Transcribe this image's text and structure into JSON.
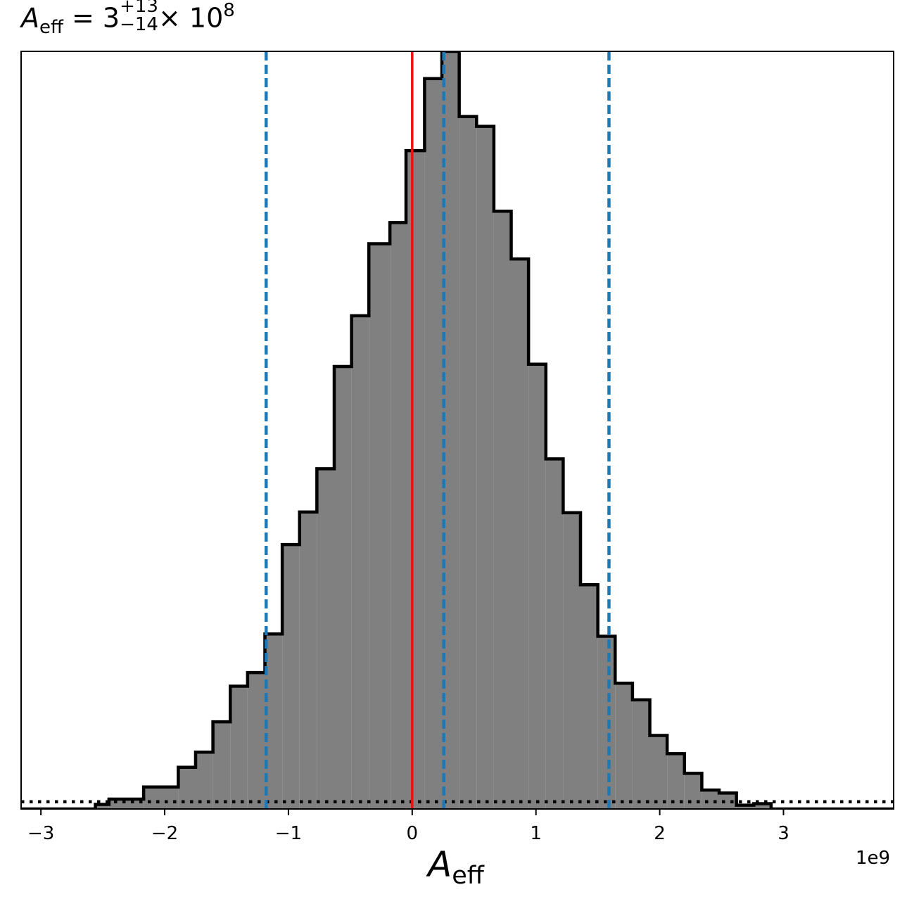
{
  "title": {
    "symbol": "A",
    "subscript": "eff",
    "equals": " = 3",
    "upper": "+13",
    "lower": "−14",
    "times": "× 10",
    "exponent": "8"
  },
  "xlabel": {
    "symbol": "A",
    "subscript": "eff"
  },
  "offset_text": "1e9",
  "chart_data": {
    "type": "histogram",
    "x_unit_scale": "1e9",
    "xlim": [
      -3.16,
      3.89
    ],
    "ylim": [
      0,
      1.0
    ],
    "grid": false,
    "bins": [
      {
        "x0": -3.16,
        "x1": -2.56,
        "y": 0.0
      },
      {
        "x0": -2.56,
        "x1": -2.45,
        "y": 0.006
      },
      {
        "x0": -2.45,
        "x1": -2.17,
        "y": 0.013
      },
      {
        "x0": -2.17,
        "x1": -1.89,
        "y": 0.029
      },
      {
        "x0": -1.89,
        "x1": -1.75,
        "y": 0.055
      },
      {
        "x0": -1.75,
        "x1": -1.61,
        "y": 0.075
      },
      {
        "x0": -1.61,
        "x1": -1.47,
        "y": 0.115
      },
      {
        "x0": -1.47,
        "x1": -1.33,
        "y": 0.162
      },
      {
        "x0": -1.33,
        "x1": -1.19,
        "y": 0.18
      },
      {
        "x0": -1.19,
        "x1": -1.05,
        "y": 0.231
      },
      {
        "x0": -1.05,
        "x1": -0.91,
        "y": 0.349
      },
      {
        "x0": -0.91,
        "x1": -0.77,
        "y": 0.392
      },
      {
        "x0": -0.77,
        "x1": -0.63,
        "y": 0.449
      },
      {
        "x0": -0.63,
        "x1": -0.49,
        "y": 0.584
      },
      {
        "x0": -0.49,
        "x1": -0.35,
        "y": 0.651
      },
      {
        "x0": -0.35,
        "x1": -0.18,
        "y": 0.746
      },
      {
        "x0": -0.18,
        "x1": -0.05,
        "y": 0.774
      },
      {
        "x0": -0.05,
        "x1": 0.1,
        "y": 0.869
      },
      {
        "x0": 0.1,
        "x1": 0.24,
        "y": 0.964
      },
      {
        "x0": 0.24,
        "x1": 0.38,
        "y": 1.0
      },
      {
        "x0": 0.38,
        "x1": 0.52,
        "y": 0.914
      },
      {
        "x0": 0.52,
        "x1": 0.66,
        "y": 0.901
      },
      {
        "x0": 0.66,
        "x1": 0.8,
        "y": 0.789
      },
      {
        "x0": 0.8,
        "x1": 0.94,
        "y": 0.726
      },
      {
        "x0": 0.94,
        "x1": 1.08,
        "y": 0.587
      },
      {
        "x0": 1.08,
        "x1": 1.22,
        "y": 0.462
      },
      {
        "x0": 1.22,
        "x1": 1.36,
        "y": 0.391
      },
      {
        "x0": 1.36,
        "x1": 1.5,
        "y": 0.296
      },
      {
        "x0": 1.5,
        "x1": 1.64,
        "y": 0.228
      },
      {
        "x0": 1.64,
        "x1": 1.78,
        "y": 0.166
      },
      {
        "x0": 1.78,
        "x1": 1.92,
        "y": 0.144
      },
      {
        "x0": 1.92,
        "x1": 2.06,
        "y": 0.097
      },
      {
        "x0": 2.06,
        "x1": 2.2,
        "y": 0.073
      },
      {
        "x0": 2.2,
        "x1": 2.34,
        "y": 0.047
      },
      {
        "x0": 2.34,
        "x1": 2.48,
        "y": 0.025
      },
      {
        "x0": 2.48,
        "x1": 2.62,
        "y": 0.021
      },
      {
        "x0": 2.62,
        "x1": 2.76,
        "y": 0.005
      },
      {
        "x0": 2.76,
        "x1": 2.9,
        "y": 0.007
      },
      {
        "x0": 2.9,
        "x1": 3.89,
        "y": 0.0
      }
    ],
    "xticks": [
      -3,
      -2,
      -1,
      0,
      1,
      2,
      3
    ],
    "xtick_labels": [
      "−3",
      "−2",
      "−1",
      "0",
      "1",
      "2",
      "3"
    ],
    "vlines": [
      {
        "x": 0.0,
        "style": "solid",
        "color": "#ee1111"
      },
      {
        "x": -1.18,
        "style": "dashed",
        "color": "#1f77b4"
      },
      {
        "x": 0.255,
        "style": "dashed",
        "color": "#1f77b4"
      },
      {
        "x": 1.59,
        "style": "dashed",
        "color": "#1f77b4"
      }
    ],
    "hline": {
      "y": 0.0095,
      "style": "dotted",
      "color": "#000000"
    },
    "fill_color": "#808080",
    "edge_color": "#000000"
  }
}
